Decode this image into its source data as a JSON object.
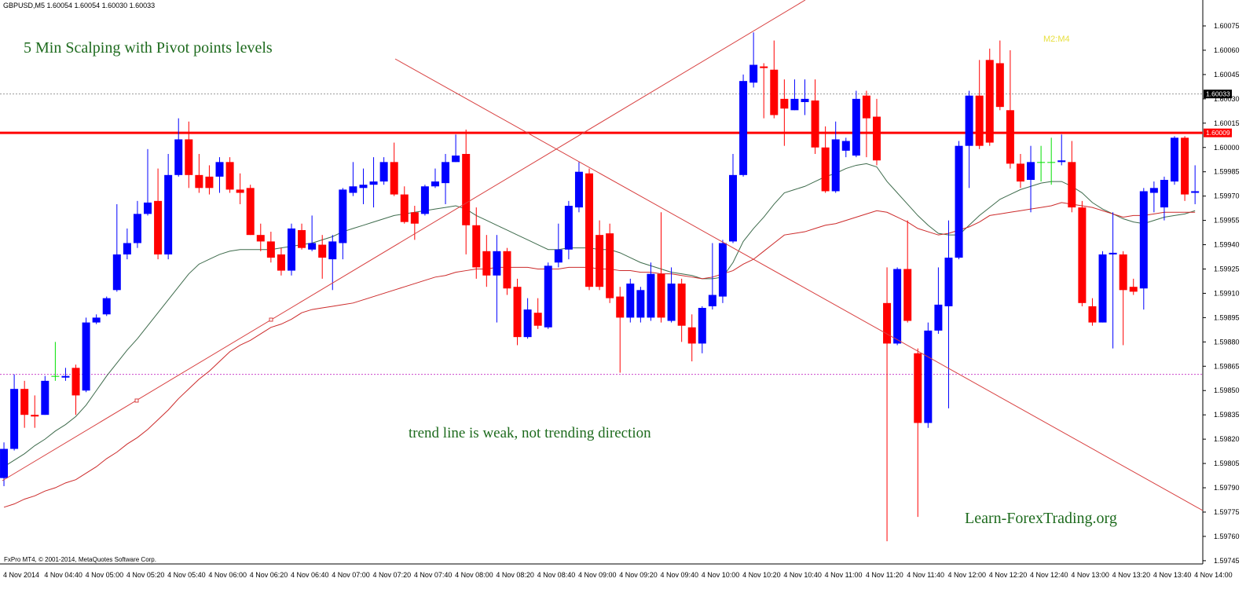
{
  "chart_data": {
    "type": "candlestick",
    "header": "GBPUSD,M5  1.60054 1.60054 1.60030 1.60033",
    "title": "5 Min Scalping with Pivot points levels",
    "annotation": "trend line is weak,  not trending direction",
    "watermark": "Learn-ForexTrading.org",
    "indicator_label": "M2:M4",
    "footer": "FxPro MT4, © 2001-2014, MetaQuotes Software Corp.",
    "up_color": "#0000ff",
    "down_color": "#ff0000",
    "doji_color": "#00e000",
    "categories": [
      "4 Nov 2014",
      null,
      null,
      null,
      "4 Nov 04:40",
      null,
      null,
      null,
      "4 Nov 05:00",
      null,
      null,
      null,
      "4 Nov 05:20",
      null,
      null,
      null,
      "4 Nov 05:40",
      null,
      null,
      null,
      "4 Nov 06:00",
      null,
      null,
      null,
      "4 Nov 06:20",
      null,
      null,
      null,
      "4 Nov 06:40",
      null,
      null,
      null,
      "4 Nov 07:00",
      null,
      null,
      null,
      "4 Nov 07:20",
      null,
      null,
      null,
      "4 Nov 07:40",
      null,
      null,
      null,
      "4 Nov 08:00",
      null,
      null,
      null,
      "4 Nov 08:20",
      null,
      null,
      null,
      "4 Nov 08:40",
      null,
      null,
      null,
      "4 Nov 09:00",
      null,
      null,
      null,
      "4 Nov 09:20",
      null,
      null,
      null,
      "4 Nov 09:40",
      null,
      null,
      null,
      "4 Nov 10:00",
      null,
      null,
      null,
      "4 Nov 10:20",
      null,
      null,
      null,
      "4 Nov 10:40",
      null,
      null,
      null,
      "4 Nov 11:00",
      null,
      null,
      null,
      "4 Nov 11:20",
      null,
      null,
      null,
      "4 Nov 11:40",
      null,
      null,
      null,
      "4 Nov 12:00",
      null,
      null,
      null,
      "4 Nov 12:20",
      null,
      null,
      null,
      "4 Nov 12:40",
      null,
      null,
      null,
      "4 Nov 13:00",
      null,
      null,
      null,
      "4 Nov 13:20",
      null,
      null,
      null,
      "4 Nov 13:40",
      null,
      null,
      null,
      "4 Nov 14:00"
    ],
    "open": [
      1.59796,
      1.59814,
      1.59851,
      1.59835,
      1.59835,
      1.59859,
      1.59858,
      1.59864,
      1.5985,
      1.59892,
      1.59897,
      1.59912,
      1.59934,
      1.59941,
      1.59959,
      1.59967,
      1.59934,
      1.59983,
      1.60005,
      1.59983,
      1.59982,
      1.59982,
      1.59991,
      1.59974,
      1.59975,
      1.59946,
      1.59942,
      1.59934,
      1.59924,
      1.59949,
      1.59937,
      1.5994,
      1.59931,
      1.59941,
      1.59972,
      1.59975,
      1.59977,
      1.59979,
      1.59991,
      1.59971,
      1.5996,
      1.59959,
      1.59976,
      1.59978,
      1.59991,
      1.59996,
      1.59952,
      1.59936,
      1.59921,
      1.59936,
      1.59914,
      1.59883,
      1.59898,
      1.59889,
      1.59929,
      1.59937,
      1.59963,
      1.59984,
      1.59946,
      1.59947,
      1.59908,
      1.59895,
      1.59895,
      1.59895,
      1.59922,
      1.59893,
      1.59916,
      1.59889,
      1.59879,
      1.59902,
      1.59908,
      1.59942,
      1.59983,
      1.6004,
      1.6005,
      1.60048,
      1.6003,
      1.60023,
      1.60028,
      1.60029,
      1.6,
      1.59973,
      1.59998,
      1.59995,
      1.60032,
      1.60019,
      1.59904,
      1.59879,
      1.59925,
      1.59873,
      1.5983,
      1.59887,
      1.59902,
      1.59932,
      1.60001,
      1.60032,
      1.60054,
      1.60052,
      1.60023,
      1.5999,
      1.5998,
      1.59991,
      1.59991,
      1.59991,
      1.59991,
      1.59963,
      1.59902,
      1.59892,
      1.59934,
      1.59934,
      1.59914,
      1.59913,
      1.59972,
      1.59963,
      1.59979,
      1.60006,
      1.59972
    ],
    "high": [
      1.59818,
      1.5986,
      1.59856,
      1.59847,
      1.59859,
      1.5988,
      1.59864,
      1.59866,
      1.59895,
      1.59897,
      1.59908,
      1.59965,
      1.5995,
      1.59967,
      1.59999,
      1.59987,
      1.59996,
      1.60018,
      1.60016,
      1.59996,
      1.59989,
      1.59994,
      1.59994,
      1.59984,
      1.59977,
      1.59953,
      1.59948,
      1.59938,
      1.59953,
      1.59953,
      1.59958,
      1.59946,
      1.59946,
      1.59975,
      1.59991,
      1.59987,
      1.59994,
      1.59994,
      1.60003,
      1.59976,
      1.59964,
      1.59977,
      1.59987,
      1.59996,
      1.60008,
      1.60011,
      1.59963,
      1.59946,
      1.59946,
      1.59938,
      1.59919,
      1.59907,
      1.59907,
      1.59929,
      1.59953,
      1.59967,
      1.59991,
      1.59987,
      1.59955,
      1.59953,
      1.59914,
      1.59919,
      1.59914,
      1.59929,
      1.5996,
      1.59926,
      1.59919,
      1.59897,
      1.59902,
      1.59941,
      1.59943,
      1.59996,
      1.60045,
      1.60071,
      1.60052,
      1.60066,
      1.60042,
      1.60042,
      1.60042,
      1.60042,
      1.60013,
      1.60016,
      1.60006,
      1.60035,
      1.60035,
      1.6003,
      1.59926,
      1.59926,
      1.59955,
      1.59876,
      1.59892,
      1.59926,
      1.59955,
      1.60004,
      1.60035,
      1.60054,
      1.60061,
      1.60066,
      1.6006,
      1.59996,
      1.60001,
      1.60001,
      1.60006,
      1.60008,
      1.60004,
      1.59967,
      1.59907,
      1.59936,
      1.5996,
      1.59936,
      1.59919,
      1.59975,
      1.59979,
      1.59982,
      1.60007,
      1.60007,
      1.59989
    ],
    "low": [
      1.59791,
      1.59813,
      1.59827,
      1.59827,
      1.59835,
      1.59856,
      1.59856,
      1.59835,
      1.59849,
      1.59891,
      1.59896,
      1.59911,
      1.59931,
      1.59938,
      1.59958,
      1.59931,
      1.59931,
      1.59982,
      1.59975,
      1.59972,
      1.59971,
      1.59972,
      1.59972,
      1.59965,
      1.59946,
      1.59936,
      1.59929,
      1.59921,
      1.59921,
      1.59937,
      1.59936,
      1.59919,
      1.59912,
      1.59931,
      1.5997,
      1.59965,
      1.59963,
      1.59977,
      1.5997,
      1.59953,
      1.59943,
      1.59958,
      1.59975,
      1.59965,
      1.59991,
      1.59934,
      1.59919,
      1.59914,
      1.59892,
      1.59909,
      1.59878,
      1.59882,
      1.59888,
      1.59888,
      1.59926,
      1.59931,
      1.5996,
      1.59912,
      1.59912,
      1.59904,
      1.59861,
      1.59892,
      1.59892,
      1.59893,
      1.59892,
      1.59892,
      1.5988,
      1.59868,
      1.59873,
      1.599,
      1.59904,
      1.59941,
      1.59982,
      1.60037,
      1.60018,
      1.60018,
      1.60001,
      1.60023,
      1.6002,
      1.59996,
      1.59972,
      1.59972,
      1.59994,
      1.59994,
      1.59994,
      1.59989,
      1.59757,
      1.59878,
      1.59892,
      1.59772,
      1.59827,
      1.59885,
      1.59839,
      1.59931,
      1.59975,
      1.59999,
      1.60001,
      1.60023,
      1.59987,
      1.59975,
      1.5996,
      1.59979,
      1.59977,
      1.59989,
      1.5996,
      1.59902,
      1.5989,
      1.59892,
      1.59876,
      1.59878,
      1.59909,
      1.599,
      1.5996,
      1.59955,
      1.59977,
      1.59967,
      1.59965
    ],
    "close": [
      1.59814,
      1.59851,
      1.59835,
      1.59834,
      1.59856,
      1.59859,
      1.59859,
      1.59847,
      1.59892,
      1.59895,
      1.59907,
      1.59934,
      1.59941,
      1.59959,
      1.59966,
      1.59934,
      1.59983,
      1.60005,
      1.59983,
      1.59975,
      1.59975,
      1.59991,
      1.59974,
      1.59972,
      1.59946,
      1.59942,
      1.59932,
      1.59924,
      1.5995,
      1.59938,
      1.59941,
      1.59932,
      1.59942,
      1.59974,
      1.59976,
      1.59977,
      1.59979,
      1.59991,
      1.59971,
      1.59954,
      1.59953,
      1.59976,
      1.59979,
      1.59991,
      1.59995,
      1.59952,
      1.59926,
      1.59921,
      1.59936,
      1.59913,
      1.59883,
      1.599,
      1.5989,
      1.59927,
      1.59937,
      1.59964,
      1.59985,
      1.59914,
      1.59914,
      1.59907,
      1.59895,
      1.59916,
      1.59912,
      1.59922,
      1.59895,
      1.59916,
      1.5989,
      1.59879,
      1.59901,
      1.59909,
      1.59941,
      1.59983,
      1.60041,
      1.60051,
      1.60049,
      1.6002,
      1.60024,
      1.6003,
      1.6003,
      1.6,
      1.59973,
      1.60005,
      1.60004,
      1.6003,
      1.60018,
      1.59992,
      1.59879,
      1.59925,
      1.59893,
      1.5983,
      1.59887,
      1.59903,
      1.59932,
      1.60001,
      1.60032,
      1.60001,
      1.60003,
      1.60025,
      1.5999,
      1.59979,
      1.59991,
      1.59991,
      1.59991,
      1.59992,
      1.59963,
      1.59904,
      1.59892,
      1.59934,
      1.59935,
      1.59912,
      1.59911,
      1.59973,
      1.59975,
      1.5998,
      1.60006,
      1.59971,
      1.59973
    ],
    "moving_averages": [
      {
        "color": "#3e6b4c",
        "values": [
          1.59803,
          1.59807,
          1.59811,
          1.59816,
          1.5982,
          1.59825,
          1.59829,
          1.59834,
          1.59841,
          1.5985,
          1.59859,
          1.59867,
          1.59875,
          1.59882,
          1.5989,
          1.59898,
          1.59906,
          1.59914,
          1.59922,
          1.59928,
          1.59931,
          1.59934,
          1.59936,
          1.59937,
          1.59937,
          1.59937,
          1.59937,
          1.59938,
          1.59939,
          1.5994,
          1.59941,
          1.59943,
          1.59945,
          1.59948,
          1.5995,
          1.59952,
          1.59954,
          1.59956,
          1.59958,
          1.59959,
          1.5996,
          1.59961,
          1.59962,
          1.59963,
          1.59964,
          1.59962,
          1.59958,
          1.59955,
          1.59952,
          1.59949,
          1.59946,
          1.59943,
          1.5994,
          1.59937,
          1.59937,
          1.59938,
          1.59938,
          1.59938,
          1.59937,
          1.59937,
          1.59935,
          1.59932,
          1.59929,
          1.59927,
          1.59925,
          1.59923,
          1.59922,
          1.59921,
          1.59919,
          1.59919,
          1.5992,
          1.59929,
          1.59942,
          1.5995,
          1.59957,
          1.59965,
          1.59972,
          1.59974,
          1.59976,
          1.59979,
          1.59982,
          1.59984,
          1.59987,
          1.59989,
          1.5999,
          1.59988,
          1.59979,
          1.59972,
          1.59965,
          1.59958,
          1.59952,
          1.59947,
          1.59946,
          1.59946,
          1.59952,
          1.59958,
          1.59963,
          1.59968,
          1.59971,
          1.59974,
          1.59976,
          1.59978,
          1.59979,
          1.59979,
          1.59976,
          1.59972,
          1.59966,
          1.59962,
          1.59959,
          1.59956,
          1.59954,
          1.59953,
          1.59955,
          1.59957,
          1.59958,
          1.59959,
          1.59961
        ]
      },
      {
        "color": "#cc2a2a",
        "values": [
          1.59778,
          1.5978,
          1.59783,
          1.59785,
          1.59788,
          1.5979,
          1.59793,
          1.59795,
          1.59799,
          1.59803,
          1.59808,
          1.59812,
          1.59817,
          1.59821,
          1.59826,
          1.59832,
          1.59838,
          1.59845,
          1.59851,
          1.59857,
          1.59862,
          1.59868,
          1.59874,
          1.59878,
          1.59881,
          1.59885,
          1.59889,
          1.59891,
          1.59894,
          1.59898,
          1.599,
          1.59901,
          1.59902,
          1.59903,
          1.59904,
          1.59906,
          1.59908,
          1.5991,
          1.59912,
          1.59914,
          1.59916,
          1.59918,
          1.5992,
          1.59921,
          1.59923,
          1.59924,
          1.59925,
          1.59925,
          1.59926,
          1.59926,
          1.59926,
          1.59926,
          1.59925,
          1.59925,
          1.59925,
          1.59926,
          1.59926,
          1.59926,
          1.59925,
          1.59925,
          1.59924,
          1.59924,
          1.59923,
          1.59923,
          1.59922,
          1.59922,
          1.59921,
          1.5992,
          1.59919,
          1.5992,
          1.59922,
          1.59924,
          1.59928,
          1.59931,
          1.59936,
          1.59941,
          1.59946,
          1.59947,
          1.59948,
          1.5995,
          1.59952,
          1.59953,
          1.59955,
          1.59957,
          1.59959,
          1.59961,
          1.5996,
          1.59957,
          1.59954,
          1.5995,
          1.59948,
          1.59946,
          1.59947,
          1.59949,
          1.59951,
          1.59954,
          1.59958,
          1.59959,
          1.5996,
          1.59961,
          1.59962,
          1.59963,
          1.59964,
          1.59966,
          1.59965,
          1.59964,
          1.59963,
          1.59961,
          1.59959,
          1.59957,
          1.59958,
          1.59958,
          1.59959,
          1.5996,
          1.5996,
          1.5996,
          1.5996
        ]
      }
    ],
    "levels": [
      {
        "value": 1.5986,
        "color": "#cc44cc",
        "style": "dashed",
        "width": 1
      },
      {
        "value": 1.60033,
        "color": "#999999",
        "style": "dashed",
        "width": 1,
        "label_bg": "#000000"
      },
      {
        "value": 1.60009,
        "color": "#ff0000",
        "style": "solid",
        "width": 3,
        "label_bg": "#ff0000"
      }
    ],
    "ylim": [
      1.59743,
      1.60091
    ],
    "yticks": [
      1.60075,
      {
        "value": 1.6006,
        "label": "1.60060"
      },
      1.60045,
      {
        "value": 1.6003,
        "label": "1.60030"
      },
      1.60015,
      {
        "value": 1.6,
        "label": "1.60000"
      },
      1.59985,
      {
        "value": 1.5997,
        "label": "1.59970"
      },
      1.59955,
      {
        "value": 1.5994,
        "label": "1.59940"
      },
      1.59925,
      {
        "value": 1.5991,
        "label": "1.59910"
      },
      1.59895,
      {
        "value": 1.5988,
        "label": "1.59880"
      },
      1.59865,
      {
        "value": 1.5985,
        "label": "1.59850"
      },
      1.59835,
      {
        "value": 1.5982,
        "label": "1.59820"
      },
      1.59805,
      {
        "value": 1.5979,
        "label": "1.59790"
      },
      1.59775,
      {
        "value": 1.5976,
        "label": "1.59760"
      },
      1.59745
    ],
    "grid": false
  }
}
